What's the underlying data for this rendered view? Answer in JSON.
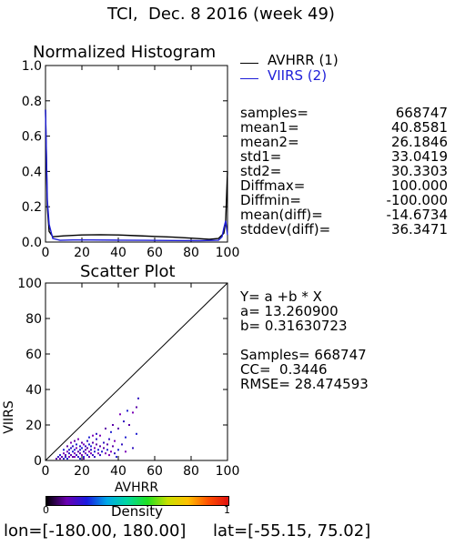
{
  "title": "TCI,  Dec. 8 2016 (week 49)",
  "histogram": {
    "title": "Normalized Histogram",
    "legend": [
      {
        "label": "AVHRR (1)",
        "color": "#000000"
      },
      {
        "label": "VIIRS (2)",
        "color": "#1e1ed8"
      }
    ],
    "stats": [
      {
        "label": "samples=",
        "value": "668747"
      },
      {
        "label": "mean1=",
        "value": "40.8581"
      },
      {
        "label": "mean2=",
        "value": "26.1846"
      },
      {
        "label": "std1=",
        "value": "33.0419"
      },
      {
        "label": "std2=",
        "value": "30.3303"
      },
      {
        "label": "Diffmax=",
        "value": "100.000"
      },
      {
        "label": "Diffmin=",
        "value": "-100.000"
      },
      {
        "label": "mean(diff)=",
        "value": "-14.6734"
      },
      {
        "label": "stddev(diff)=",
        "value": "36.3471"
      }
    ]
  },
  "scatter": {
    "title": "Scatter Plot",
    "equation": "Y= a +b * X",
    "a_line": "a= 13.260900",
    "b_line": "b= 0.31630723",
    "samples_line": "Samples= 668747",
    "cc_line": "CC=  0.3446",
    "rmse_line": "RMSE= 28.474593"
  },
  "colorbar": {
    "label": "Density",
    "min_label": "0",
    "max_label": "1",
    "colors": [
      "#000000",
      "#6a00b0",
      "#1a1ae0",
      "#00a8e8",
      "#00d8a0",
      "#20e020",
      "#c8e000",
      "#ffc000",
      "#ff5000",
      "#e01010"
    ]
  },
  "footer": {
    "lon_text": "lon=[-180.00, 180.00]",
    "lat_text": "lat=[-55.15, 75.02]"
  },
  "chart_data": [
    {
      "type": "line",
      "title": "Normalized Histogram",
      "xlim": [
        0,
        100
      ],
      "ylim": [
        0,
        1.0
      ],
      "x_ticks": [
        0,
        20,
        40,
        60,
        80,
        100
      ],
      "y_ticks": [
        "0.0",
        "0.2",
        "0.4",
        "0.6",
        "0.8",
        "1.0"
      ],
      "series": [
        {
          "name": "AVHRR (1)",
          "color": "#000000",
          "points": [
            [
              0,
              0.75
            ],
            [
              1,
              0.2
            ],
            [
              2,
              0.06
            ],
            [
              4,
              0.03
            ],
            [
              10,
              0.035
            ],
            [
              20,
              0.04
            ],
            [
              30,
              0.042
            ],
            [
              40,
              0.04
            ],
            [
              50,
              0.036
            ],
            [
              60,
              0.032
            ],
            [
              70,
              0.028
            ],
            [
              80,
              0.022
            ],
            [
              90,
              0.016
            ],
            [
              95,
              0.02
            ],
            [
              98,
              0.05
            ],
            [
              99,
              0.12
            ],
            [
              100,
              0.4
            ]
          ]
        },
        {
          "name": "VIIRS (2)",
          "color": "#1e1ed8",
          "points": [
            [
              0,
              0.75
            ],
            [
              0.5,
              0.5
            ],
            [
              1,
              0.24
            ],
            [
              2,
              0.1
            ],
            [
              4,
              0.02
            ],
            [
              8,
              0.01
            ],
            [
              15,
              0.012
            ],
            [
              25,
              0.012
            ],
            [
              40,
              0.011
            ],
            [
              55,
              0.01
            ],
            [
              70,
              0.009
            ],
            [
              85,
              0.008
            ],
            [
              95,
              0.01
            ],
            [
              97,
              0.03
            ],
            [
              98,
              0.08
            ],
            [
              99,
              0.12
            ],
            [
              100,
              0.04
            ]
          ]
        }
      ]
    },
    {
      "type": "scatter",
      "title": "Scatter Plot",
      "xlabel": "AVHRR",
      "ylabel": "VIIRS",
      "xlim": [
        0,
        100
      ],
      "ylim": [
        0,
        100
      ],
      "x_ticks": [
        0,
        20,
        40,
        60,
        80,
        100
      ],
      "y_ticks": [
        0,
        20,
        40,
        60,
        80,
        100
      ],
      "one_to_one_line": true,
      "points": [
        [
          6,
          1
        ],
        [
          7,
          2
        ],
        [
          8,
          1
        ],
        [
          8,
          3
        ],
        [
          9,
          2
        ],
        [
          10,
          1
        ],
        [
          10,
          4
        ],
        [
          10,
          6
        ],
        [
          11,
          3
        ],
        [
          11,
          2
        ],
        [
          12,
          5
        ],
        [
          12,
          1
        ],
        [
          12,
          8
        ],
        [
          13,
          4
        ],
        [
          13,
          2
        ],
        [
          13,
          6
        ],
        [
          14,
          3
        ],
        [
          14,
          7
        ],
        [
          14,
          10
        ],
        [
          15,
          5
        ],
        [
          15,
          2
        ],
        [
          15,
          8
        ],
        [
          16,
          4
        ],
        [
          16,
          6
        ],
        [
          16,
          11
        ],
        [
          17,
          3
        ],
        [
          17,
          7
        ],
        [
          17,
          9
        ],
        [
          18,
          5
        ],
        [
          18,
          2
        ],
        [
          18,
          12
        ],
        [
          19,
          6
        ],
        [
          19,
          4
        ],
        [
          19,
          8
        ],
        [
          20,
          3
        ],
        [
          20,
          7
        ],
        [
          20,
          10
        ],
        [
          21,
          5
        ],
        [
          21,
          9
        ],
        [
          21,
          2
        ],
        [
          22,
          6
        ],
        [
          22,
          8
        ],
        [
          22,
          4
        ],
        [
          23,
          3
        ],
        [
          23,
          7
        ],
        [
          23,
          11
        ],
        [
          24,
          5
        ],
        [
          24,
          9
        ],
        [
          24,
          2
        ],
        [
          25,
          6
        ],
        [
          25,
          4
        ],
        [
          25,
          8
        ],
        [
          26,
          10
        ],
        [
          26,
          3
        ],
        [
          27,
          7
        ],
        [
          27,
          5
        ],
        [
          28,
          9
        ],
        [
          28,
          12
        ],
        [
          29,
          4
        ],
        [
          29,
          6
        ],
        [
          30,
          8
        ],
        [
          30,
          3
        ],
        [
          30,
          14
        ],
        [
          31,
          5
        ],
        [
          32,
          7
        ],
        [
          32,
          10
        ],
        [
          33,
          4
        ],
        [
          34,
          6
        ],
        [
          34,
          9
        ],
        [
          35,
          12
        ],
        [
          36,
          5
        ],
        [
          36,
          16
        ],
        [
          37,
          8
        ],
        [
          38,
          4
        ],
        [
          38,
          11
        ],
        [
          40,
          6
        ],
        [
          40,
          18
        ],
        [
          42,
          9
        ],
        [
          44,
          5
        ],
        [
          44,
          13
        ],
        [
          46,
          20
        ],
        [
          48,
          7
        ],
        [
          48,
          27
        ],
        [
          50,
          15
        ],
        [
          50,
          30
        ],
        [
          51,
          35
        ],
        [
          41,
          26
        ],
        [
          45,
          28
        ],
        [
          33,
          18
        ],
        [
          28,
          15
        ],
        [
          26,
          14
        ],
        [
          24,
          13
        ],
        [
          37,
          20
        ],
        [
          43,
          22
        ],
        [
          16,
          2
        ],
        [
          19,
          1
        ],
        [
          21,
          1
        ],
        [
          27,
          2
        ],
        [
          35,
          3
        ],
        [
          39,
          2
        ]
      ]
    }
  ]
}
